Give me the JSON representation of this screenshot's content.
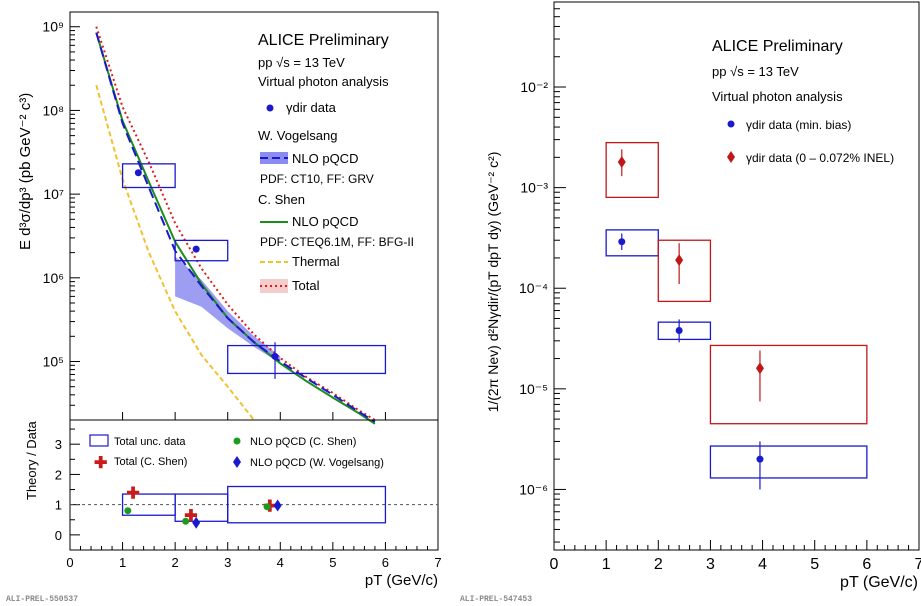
{
  "chart_data": [
    {
      "type": "line",
      "panel": "left-top",
      "ylabel": "E d³σ/dp³ (pb GeV⁻² c³)",
      "yscale": "log",
      "ylim": [
        20000,
        1500000000
      ],
      "xlim": [
        0,
        7
      ],
      "y_tick_labels": [
        "10⁹",
        "10⁸",
        "10⁷",
        "10⁶",
        "10⁵"
      ],
      "legend": {
        "title": "ALICE Preliminary",
        "energy": "pp √s = 13 TeV",
        "analysis": "Virtual photon analysis",
        "data_label": "γdir data",
        "vogelsang_header": "W. Vogelsang",
        "vogelsang_nlo": "NLO pQCD",
        "vogelsang_pdf": "PDF: CT10, FF: GRV",
        "shen_header": "C. Shen",
        "shen_nlo": "NLO pQCD",
        "shen_pdf": "PDF: CTEQ6.1M, FF: BFG-II",
        "thermal": "Thermal",
        "total": "Total"
      },
      "data": [
        {
          "x": 1.3,
          "y": 18000000,
          "xlo": 1.0,
          "xhi": 2.0,
          "sys_lo": 12000000,
          "sys_hi": 23000000
        },
        {
          "x": 2.4,
          "y": 2200000,
          "xlo": 2.0,
          "xhi": 3.0,
          "sys_lo": 1600000,
          "sys_hi": 2800000
        },
        {
          "x": 3.9,
          "y": 115000,
          "xlo": 3.0,
          "xhi": 6.0,
          "sys_lo": 72000,
          "sys_hi": 155000,
          "stat_lo": 62000,
          "stat_hi": 170000
        }
      ],
      "series": [
        {
          "name": "NLO pQCD",
          "group": "W. Vogelsang",
          "color": "#1a1acc",
          "x": [
            0.5,
            1.0,
            1.5,
            2.0,
            2.5,
            3.0,
            3.5,
            4.0,
            4.5,
            5.0,
            5.5,
            5.8
          ],
          "y": [
            850000000,
            70000000,
            12000000,
            2100000,
            800000,
            330000,
            170000,
            100000,
            63000,
            40000,
            25000,
            19000
          ],
          "band_lo": [
            null,
            null,
            null,
            600000,
            450000,
            250000,
            150000,
            95000,
            null,
            null,
            null,
            null
          ],
          "band_hi": [
            null,
            null,
            null,
            1800000,
            950000,
            400000,
            200000,
            115000,
            null,
            null,
            null,
            null
          ]
        },
        {
          "name": "NLO pQCD",
          "group": "C. Shen",
          "color": "#1c8c1c",
          "x": [
            0.5,
            1.0,
            1.5,
            2.0,
            2.5,
            3.0,
            3.5,
            4.0,
            4.5,
            5.0,
            5.5,
            5.8
          ],
          "y": [
            850000000,
            75000000,
            14000000,
            2700000,
            850000,
            330000,
            170000,
            95000,
            58000,
            37000,
            24000,
            18000
          ]
        },
        {
          "name": "Thermal",
          "color": "#f2c12e",
          "x": [
            0.5,
            1.0,
            1.5,
            2.0,
            2.5,
            3.0,
            3.5
          ],
          "y": [
            200000000,
            15000000,
            2000000,
            400000,
            120000,
            50000,
            20000
          ]
        },
        {
          "name": "Total",
          "color": "#e01b1b",
          "x": [
            0.5,
            1.0,
            1.5,
            2.0,
            2.5,
            3.0,
            3.5,
            4.0,
            4.5,
            5.0,
            5.5,
            5.8
          ],
          "y": [
            1000000000,
            110000000,
            24000000,
            4500000,
            1300000,
            480000,
            210000,
            110000,
            65000,
            42000,
            26000,
            20000
          ]
        }
      ]
    },
    {
      "type": "scatter",
      "panel": "left-bottom",
      "ylabel": "Theory / Data",
      "xlabel": "pT (GeV/c)",
      "xlim": [
        0,
        7
      ],
      "ylim": [
        -0.5,
        3.8
      ],
      "x_tick_labels": [
        "0",
        "1",
        "2",
        "3",
        "4",
        "5",
        "6",
        "7"
      ],
      "y_tick_labels": [
        "0",
        "1",
        "2",
        "3"
      ],
      "reference_line": 1,
      "legend": {
        "unc": "Total unc. data",
        "shen_total": "Total (C. Shen)",
        "shen_nlo": "NLO pQCD (C. Shen)",
        "vog_nlo": "NLO pQCD (W. Vogelsang)"
      },
      "boxes": [
        {
          "xlo": 1.0,
          "xhi": 2.0,
          "ylo": 0.65,
          "yhi": 1.35
        },
        {
          "xlo": 2.0,
          "xhi": 3.0,
          "ylo": 0.45,
          "yhi": 1.35
        },
        {
          "xlo": 3.0,
          "xhi": 6.0,
          "ylo": 0.4,
          "yhi": 1.6
        }
      ],
      "series": [
        {
          "name": "Total (C. Shen)",
          "color": "#cc1a1a",
          "x": [
            1.2,
            2.3,
            3.8
          ],
          "y": [
            1.4,
            0.65,
            0.97
          ]
        },
        {
          "name": "NLO pQCD (C. Shen)",
          "color": "#1c9c1c",
          "x": [
            1.1,
            2.2,
            3.75
          ],
          "y": [
            0.8,
            0.45,
            0.93
          ]
        },
        {
          "name": "NLO pQCD (W. Vogelsang)",
          "color": "#1a1acc",
          "x": [
            2.4,
            3.95
          ],
          "y": [
            0.4,
            0.97
          ]
        }
      ]
    },
    {
      "type": "scatter",
      "panel": "right",
      "ylabel": "1/(2π Nev) d²Nγdir/(pT dpT dy) (GeV⁻² c²)",
      "xlabel": "pT (GeV/c)",
      "yscale": "log",
      "xlim": [
        0,
        7
      ],
      "ylim": [
        2.5e-07,
        0.07
      ],
      "x_tick_labels": [
        "0",
        "1",
        "2",
        "3",
        "4",
        "5",
        "6",
        "7"
      ],
      "y_tick_labels": [
        "10⁻²",
        "10⁻³",
        "10⁻⁴",
        "10⁻⁵",
        "10⁻⁶"
      ],
      "legend": {
        "title": "ALICE Preliminary",
        "energy": "pp √s = 13 TeV",
        "analysis": "Virtual photon analysis",
        "minbias": "γdir data (min. bias)",
        "hm": "γdir data (0 – 0.072% INEL)"
      },
      "series": [
        {
          "name": "γdir data (min. bias)",
          "color": "#1a1acc",
          "points": [
            {
              "x": 1.3,
              "y": 0.00029,
              "xlo": 1.0,
              "xhi": 2.0,
              "sys_lo": 0.00021,
              "sys_hi": 0.00038,
              "stat_lo": 0.00024,
              "stat_hi": 0.00035
            },
            {
              "x": 2.4,
              "y": 3.8e-05,
              "xlo": 2.0,
              "xhi": 3.0,
              "sys_lo": 3.1e-05,
              "sys_hi": 4.6e-05,
              "stat_lo": 2.9e-05,
              "stat_hi": 4.9e-05
            },
            {
              "x": 3.95,
              "y": 2e-06,
              "xlo": 3.0,
              "xhi": 6.0,
              "sys_lo": 1.3e-06,
              "sys_hi": 2.7e-06,
              "stat_lo": 1e-06,
              "stat_hi": 3e-06
            }
          ]
        },
        {
          "name": "γdir data (0 – 0.072% INEL)",
          "color": "#c01818",
          "points": [
            {
              "x": 1.3,
              "y": 0.0018,
              "xlo": 1.0,
              "xhi": 2.0,
              "sys_lo": 0.0008,
              "sys_hi": 0.0028,
              "stat_lo": 0.0013,
              "stat_hi": 0.0024
            },
            {
              "x": 2.4,
              "y": 0.00019,
              "xlo": 2.0,
              "xhi": 3.0,
              "sys_lo": 7.4e-05,
              "sys_hi": 0.0003,
              "stat_lo": 0.00011,
              "stat_hi": 0.00028
            },
            {
              "x": 3.95,
              "y": 1.6e-05,
              "xlo": 3.0,
              "xhi": 6.0,
              "sys_lo": 4.5e-06,
              "sys_hi": 2.7e-05,
              "stat_lo": 7.5e-06,
              "stat_hi": 2.4e-05
            }
          ]
        }
      ]
    }
  ],
  "footer": {
    "left_id": "ALI-PREL-550537",
    "right_id": "ALI-PREL-547453"
  },
  "colors": {
    "data_blue": "#1a1acc",
    "shen_green": "#1c8c1c",
    "thermal_yellow": "#f2c12e",
    "total_red": "#e01b1b",
    "band_fill": "#8c8cf0",
    "total_band_fill": "#f3cccc"
  }
}
